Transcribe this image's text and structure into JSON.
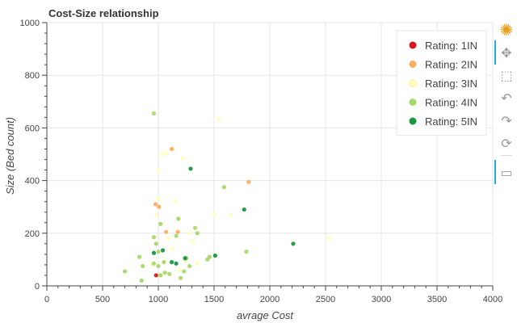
{
  "chart_data": {
    "type": "scatter",
    "title": "Cost-Size relationship",
    "xlabel": "avrage Cost",
    "ylabel": "Size (Bed count)",
    "xlim": [
      0,
      4000
    ],
    "ylim": [
      0,
      1000
    ],
    "x_ticks": [
      "0",
      "500",
      "1000",
      "1500",
      "2000",
      "2500",
      "3000",
      "3500",
      "4000"
    ],
    "y_ticks": [
      "0",
      "200",
      "400",
      "600",
      "800",
      "1000"
    ],
    "grid": true,
    "legend_position": "top-right",
    "series": [
      {
        "name": "Rating: 1IN",
        "color": "#d7191c",
        "points": [
          [
            980,
            40
          ]
        ]
      },
      {
        "name": "Rating: 2IN",
        "color": "#fdae61",
        "points": [
          [
            975,
            310
          ],
          [
            1120,
            520
          ],
          [
            1070,
            205
          ],
          [
            1175,
            205
          ],
          [
            1810,
            395
          ],
          [
            1005,
            300
          ]
        ]
      },
      {
        "name": "Rating: 3IN",
        "color": "#ffffbf",
        "points": [
          [
            1030,
            500
          ],
          [
            1070,
            505
          ],
          [
            1220,
            485
          ],
          [
            1000,
            440
          ],
          [
            1540,
            635
          ],
          [
            1650,
            270
          ],
          [
            1500,
            270
          ],
          [
            2530,
            180
          ],
          [
            1240,
            95
          ],
          [
            1310,
            170
          ],
          [
            1000,
            330
          ],
          [
            1150,
            320
          ],
          [
            980,
            270
          ],
          [
            1090,
            180
          ],
          [
            1280,
            200
          ],
          [
            940,
            80
          ],
          [
            1030,
            45
          ],
          [
            1190,
            60
          ],
          [
            1120,
            140
          ],
          [
            1350,
            85
          ]
        ]
      },
      {
        "name": "Rating: 4IN",
        "color": "#a6d96a",
        "points": [
          [
            960,
            655
          ],
          [
            1590,
            375
          ],
          [
            1180,
            255
          ],
          [
            1330,
            220
          ],
          [
            1350,
            200
          ],
          [
            1020,
            235
          ],
          [
            960,
            185
          ],
          [
            1160,
            190
          ],
          [
            980,
            160
          ],
          [
            1000,
            130
          ],
          [
            830,
            110
          ],
          [
            860,
            75
          ],
          [
            960,
            85
          ],
          [
            1000,
            75
          ],
          [
            1050,
            90
          ],
          [
            1250,
            105
          ],
          [
            1280,
            75
          ],
          [
            1440,
            100
          ],
          [
            1460,
            110
          ],
          [
            1230,
            55
          ],
          [
            1200,
            30
          ],
          [
            1060,
            50
          ],
          [
            1100,
            45
          ],
          [
            1020,
            40
          ],
          [
            850,
            20
          ],
          [
            700,
            55
          ],
          [
            1790,
            130
          ]
        ]
      },
      {
        "name": "Rating: 5IN",
        "color": "#1a9641",
        "points": [
          [
            1290,
            445
          ],
          [
            1770,
            290
          ],
          [
            2210,
            160
          ],
          [
            1040,
            135
          ],
          [
            960,
            125
          ],
          [
            1120,
            90
          ],
          [
            1160,
            85
          ],
          [
            1510,
            115
          ],
          [
            1240,
            105
          ]
        ]
      }
    ]
  },
  "toolbar": {
    "tools": [
      {
        "name": "bokeh-logo-icon",
        "glyph": "✺"
      },
      {
        "name": "pan-tool-icon",
        "glyph": "✥"
      },
      {
        "name": "box-zoom-tool-icon",
        "glyph": "⬚"
      },
      {
        "name": "undo-tool-icon",
        "glyph": "↶"
      },
      {
        "name": "redo-tool-icon",
        "glyph": "↷"
      },
      {
        "name": "reset-tool-icon",
        "glyph": "⟳"
      },
      {
        "name": "hover-tool-icon",
        "glyph": "▭"
      }
    ]
  }
}
